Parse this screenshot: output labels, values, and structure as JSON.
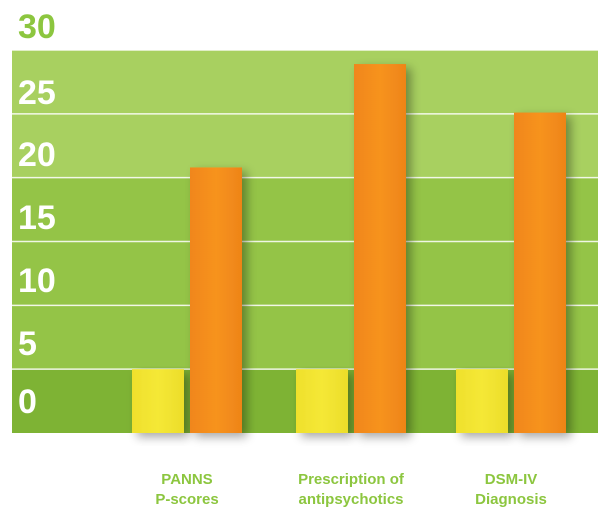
{
  "chart_data": {
    "type": "bar",
    "categories": [
      [
        "PANNS",
        "P-scores"
      ],
      [
        "Prescription of",
        "antipsychotics"
      ],
      [
        "DSM-IV",
        "Diagnosis"
      ]
    ],
    "series": [
      {
        "values": [
          5,
          5,
          5
        ]
      },
      {
        "values": [
          20.8,
          28.9,
          25.1
        ]
      }
    ],
    "yticks": [
      "0",
      "5",
      "10",
      "15",
      "20",
      "25",
      "30"
    ],
    "ylim": [
      0,
      30
    ],
    "grid": true,
    "legend": "none",
    "colors": {
      "band_light": "#a8d060",
      "band_mid": "#94c447",
      "band_dark": "#7eb334",
      "grid_line": "#ffffff",
      "series_1": "#f3e633",
      "series_2": "#f7931e",
      "tick_text": "#8cc63f",
      "category_text": "#8cc63f"
    }
  }
}
